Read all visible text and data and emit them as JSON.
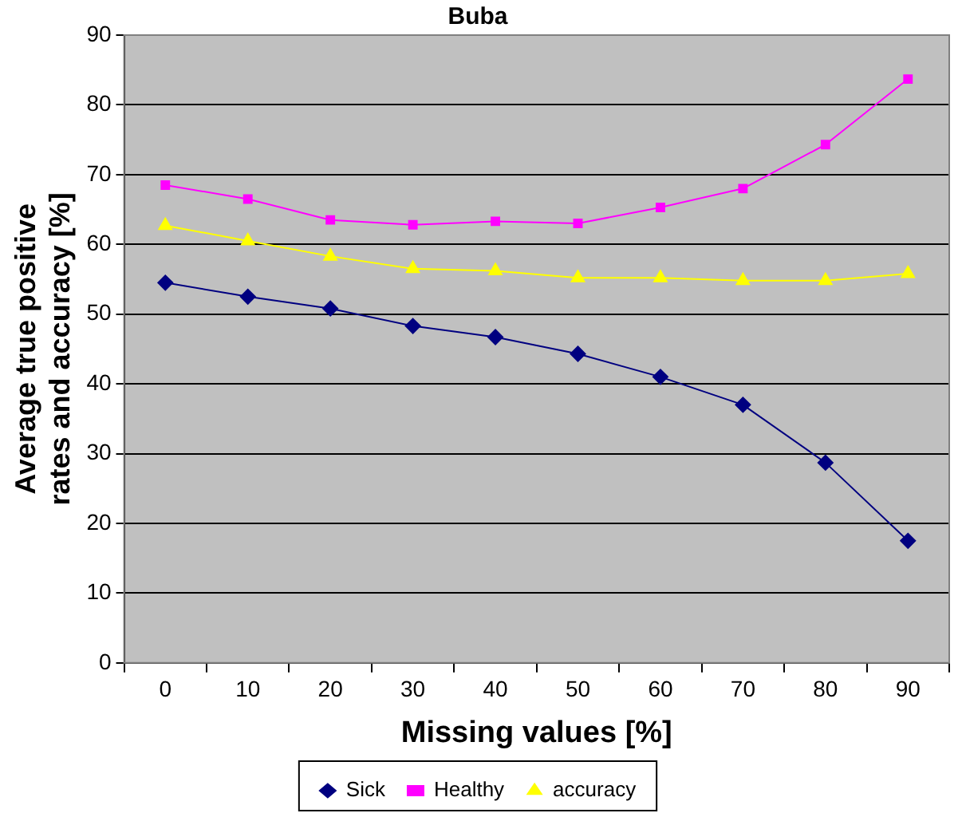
{
  "chart_data": {
    "type": "line",
    "title": "Buba",
    "xlabel": "Missing values [%]",
    "ylabel": "Average true positive rates and accuracy [%]",
    "categories": [
      "0",
      "10",
      "20",
      "30",
      "40",
      "50",
      "60",
      "70",
      "80",
      "90"
    ],
    "series": [
      {
        "name": "Sick",
        "color": "#000080",
        "marker": "diamond",
        "values": [
          54.5,
          52.5,
          50.8,
          48.3,
          46.7,
          44.3,
          41,
          37,
          28.7,
          17.5
        ]
      },
      {
        "name": "Healthy",
        "color": "#ff00ff",
        "marker": "square",
        "values": [
          68.5,
          66.5,
          63.5,
          62.8,
          63.3,
          63,
          65.3,
          68,
          74.3,
          83.7
        ]
      },
      {
        "name": "accuracy",
        "color": "#ffff00",
        "marker": "triangle",
        "values": [
          62.7,
          60.5,
          58.3,
          56.5,
          56.2,
          55.2,
          55.2,
          54.8,
          54.8,
          55.8
        ]
      }
    ],
    "ylim": [
      0,
      90
    ],
    "yticks": [
      0,
      10,
      20,
      30,
      40,
      50,
      60,
      70,
      80,
      90
    ],
    "grid": "y",
    "legend": "bottom"
  }
}
